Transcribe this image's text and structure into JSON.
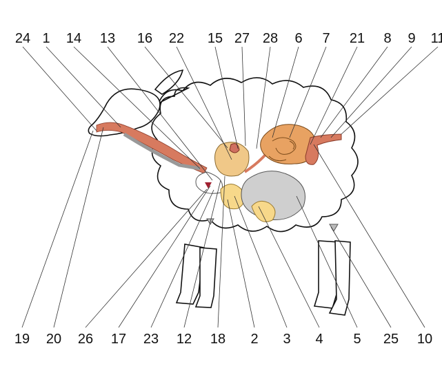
{
  "top_labels": [
    "24",
    "1",
    "14",
    "13",
    "16",
    "22",
    "15",
    "27",
    "28",
    "6",
    "7",
    "21",
    "8",
    "9",
    "11"
  ],
  "bottom_labels": [
    "19",
    "20",
    "26",
    "17",
    "23",
    "12",
    "18",
    "2",
    "3",
    "4",
    "5",
    "25",
    "10"
  ]
}
